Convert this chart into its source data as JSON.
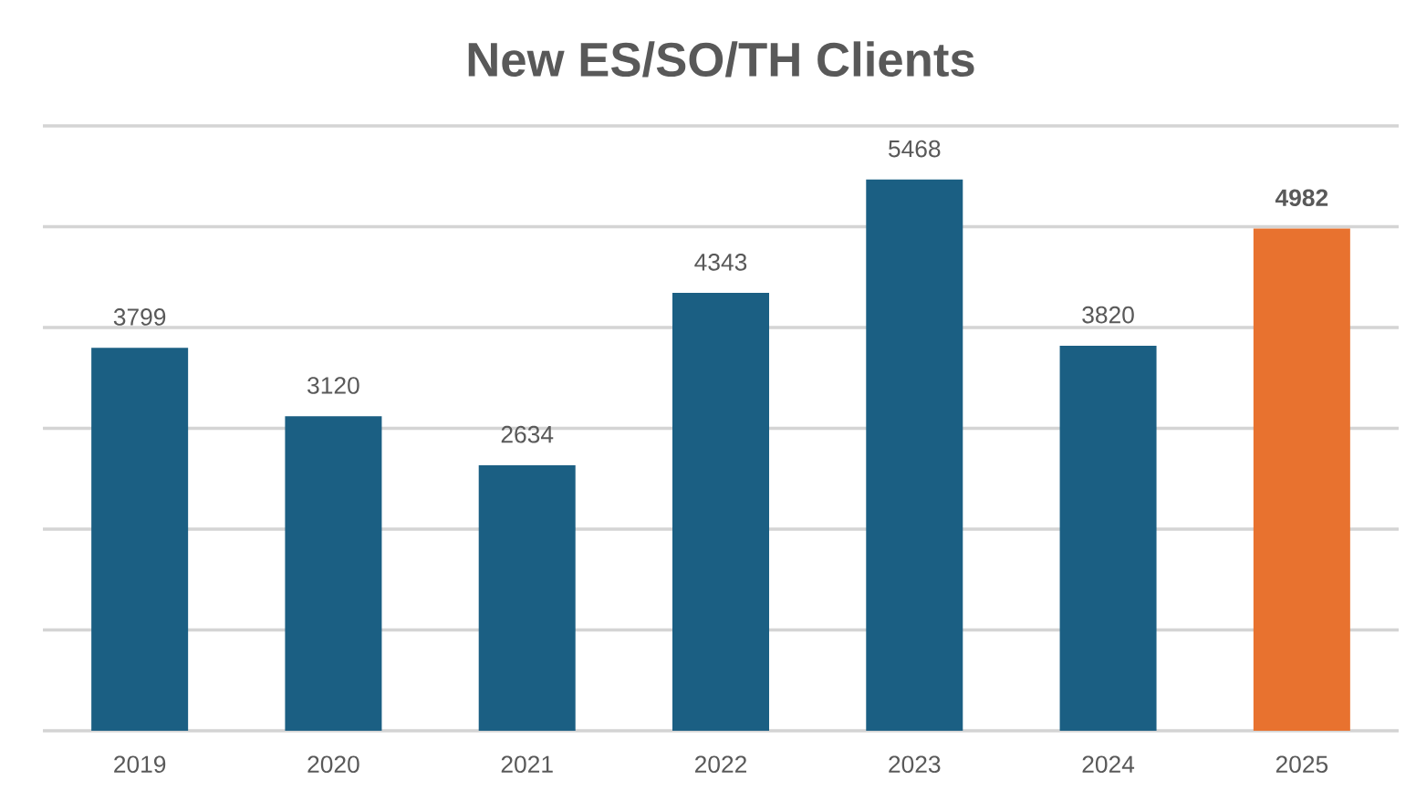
{
  "chart_data": {
    "type": "bar",
    "title": "New ES/SO/TH Clients",
    "categories": [
      "2019",
      "2020",
      "2021",
      "2022",
      "2023",
      "2024",
      "2025"
    ],
    "values": [
      3799,
      3120,
      2634,
      4343,
      5468,
      3820,
      4982
    ],
    "colors": [
      "#1b5f83",
      "#1b5f83",
      "#1b5f83",
      "#1b5f83",
      "#1b5f83",
      "#1b5f83",
      "#e8722f"
    ],
    "value_labels": [
      "3799",
      "3120",
      "2634",
      "4343",
      "5468",
      "3820",
      "**4982**"
    ],
    "ylim": [
      0,
      6000
    ],
    "yticks": [
      {
        "value": 0,
        "label": null
      },
      {
        "value": 1000,
        "label": null
      },
      {
        "value": 2000,
        "label": null
      },
      {
        "value": 3000,
        "label": null
      },
      {
        "value": 4000,
        "label": null
      },
      {
        "value": 5000,
        "label": null
      },
      {
        "value": 6000,
        "label": null
      }
    ],
    "grid": "y",
    "tick_labels": "x"
  }
}
